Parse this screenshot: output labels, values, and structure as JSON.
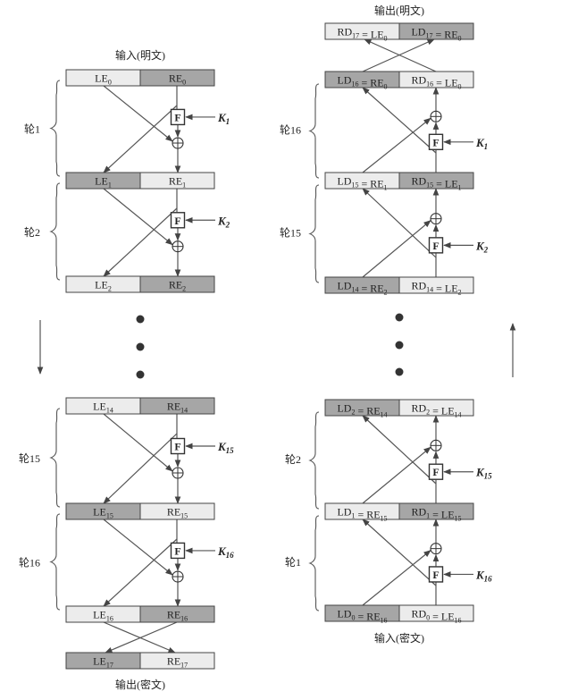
{
  "colors": {
    "light": "#ececec",
    "dark": "#a6a6a6",
    "line": "#555555"
  },
  "encrypt": {
    "input_label": "输入(明文)",
    "output_label": "输出(密文)",
    "rows": [
      {
        "l": [
          "LE",
          "0"
        ],
        "r": [
          "RE",
          "0"
        ]
      },
      {
        "l": [
          "LE",
          "1"
        ],
        "r": [
          "RE",
          "1"
        ]
      },
      {
        "l": [
          "LE",
          "2"
        ],
        "r": [
          "RE",
          "2"
        ]
      },
      {
        "l": [
          "LE",
          "14"
        ],
        "r": [
          "RE",
          "14"
        ]
      },
      {
        "l": [
          "LE",
          "15"
        ],
        "r": [
          "RE",
          "15"
        ]
      },
      {
        "l": [
          "LE",
          "16"
        ],
        "r": [
          "RE",
          "16"
        ]
      },
      {
        "l": [
          "LE",
          "17"
        ],
        "r": [
          "RE",
          "17"
        ]
      }
    ],
    "rounds": [
      {
        "label": "轮1",
        "key": [
          "K",
          "1"
        ]
      },
      {
        "label": "轮2",
        "key": [
          "K",
          "2"
        ]
      },
      {
        "label": "轮15",
        "key": [
          "K",
          "15"
        ]
      },
      {
        "label": "轮16",
        "key": [
          "K",
          "16"
        ]
      }
    ]
  },
  "decrypt": {
    "output_label": "输出(明文)",
    "input_label": "输入(密文)",
    "rows": [
      {
        "l": [
          "RD",
          "17",
          "LE",
          "0"
        ],
        "r": [
          "LD",
          "17",
          "RE",
          "0"
        ]
      },
      {
        "l": [
          "LD",
          "16",
          "RE",
          "0"
        ],
        "r": [
          "RD",
          "16",
          "LE",
          "0"
        ]
      },
      {
        "l": [
          "LD",
          "15",
          "RE",
          "1"
        ],
        "r": [
          "RD",
          "15",
          "LE",
          "1"
        ]
      },
      {
        "l": [
          "LD",
          "14",
          "RE",
          "2"
        ],
        "r": [
          "RD",
          "14",
          "LE",
          "2"
        ]
      },
      {
        "l": [
          "LD",
          "2",
          "RE",
          "14"
        ],
        "r": [
          "RD",
          "2",
          "LE",
          "14"
        ]
      },
      {
        "l": [
          "LD",
          "1",
          "RE",
          "15"
        ],
        "r": [
          "RD",
          "1",
          "LE",
          "15"
        ]
      },
      {
        "l": [
          "LD",
          "0",
          "RE",
          "16"
        ],
        "r": [
          "RD",
          "0",
          "LE",
          "16"
        ]
      }
    ],
    "rounds": [
      {
        "label": "轮16",
        "key": [
          "K",
          "1"
        ]
      },
      {
        "label": "轮15",
        "key": [
          "K",
          "2"
        ]
      },
      {
        "label": "轮2",
        "key": [
          "K",
          "15"
        ]
      },
      {
        "label": "轮1",
        "key": [
          "K",
          "16"
        ]
      }
    ]
  },
  "f_label": "F",
  "xor_symbol": "⊕"
}
